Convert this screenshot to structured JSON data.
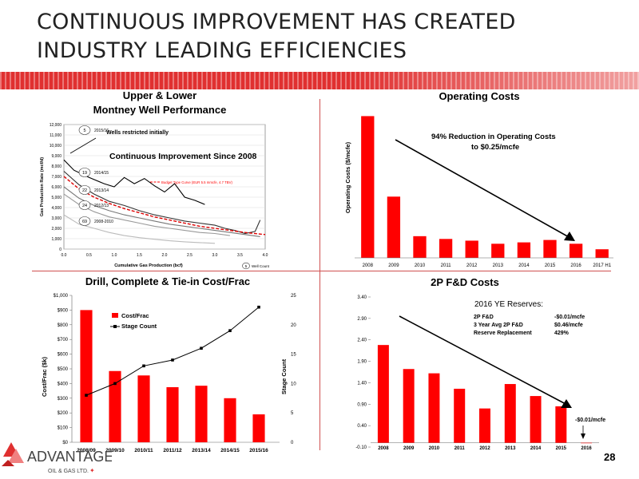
{
  "slide": {
    "title": "CONTINUOUS IMPROVEMENT HAS CREATED INDUSTRY LEADING EFFICIENCIES",
    "page_number": "28",
    "accent_color": "#e03030",
    "bar_color": "#ff0000",
    "logo_main": "ADVANTAGE",
    "logo_sub": "OIL & GAS LTD."
  },
  "chart_data": [
    {
      "type": "line",
      "title": "Upper & Lower Montney Well Performance",
      "title_lines": [
        "Upper & Lower",
        "Montney Well Performance"
      ],
      "xlabel": "Cumulative Gas Production (bcf)",
      "ylabel": "Gas Production Rate (mcf/d)",
      "xlim": [
        0,
        4
      ],
      "ylim": [
        0,
        12000
      ],
      "x_ticks": [
        "0.0",
        "0.5",
        "1.0",
        "1.5",
        "2.0",
        "2.5",
        "3.0",
        "3.5",
        "4.0"
      ],
      "y_ticks": [
        "0",
        "1,000",
        "2,000",
        "3,000",
        "4,000",
        "5,000",
        "6,000",
        "7,000",
        "8,000",
        "9,000",
        "10,000",
        "11,000",
        "12,000"
      ],
      "annotations": {
        "restricted": "Wells restricted initially",
        "improvement": "Continuous Improvement Since 2008",
        "type_curve": "Budget Type Curve (EUR 5.5 mmcfe, 4.7 TBV)",
        "well_count": "Well Count",
        "well_count_badge": "5"
      },
      "series": [
        {
          "name": "2015/16",
          "badge": "5",
          "color": "#000000",
          "points": [
            [
              0.0,
              8600
            ],
            [
              0.2,
              7600
            ],
            [
              0.5,
              6900
            ],
            [
              0.8,
              6300
            ],
            [
              1.0,
              6000
            ],
            [
              1.2,
              6900
            ],
            [
              1.4,
              6300
            ],
            [
              1.6,
              6800
            ],
            [
              1.8,
              6100
            ],
            [
              2.0,
              5500
            ],
            [
              2.2,
              6300
            ],
            [
              2.4,
              5000
            ],
            [
              2.6,
              4700
            ],
            [
              2.8,
              4300
            ]
          ]
        },
        {
          "name": "2014/15",
          "badge": "19",
          "color": "#333333",
          "points": [
            [
              0.0,
              7500
            ],
            [
              0.3,
              6200
            ],
            [
              0.6,
              5300
            ],
            [
              0.9,
              4600
            ],
            [
              1.2,
              4200
            ],
            [
              1.5,
              3700
            ],
            [
              1.8,
              3300
            ],
            [
              2.1,
              3000
            ],
            [
              2.4,
              2700
            ],
            [
              2.7,
              2500
            ],
            [
              3.0,
              2300
            ],
            [
              3.2,
              2000
            ],
            [
              3.4,
              1800
            ],
            [
              3.6,
              1500
            ],
            [
              3.8,
              1700
            ],
            [
              3.9,
              2800
            ]
          ]
        },
        {
          "name": "2013/14",
          "badge": "22",
          "color": "#777777",
          "points": [
            [
              0.0,
              6000
            ],
            [
              0.3,
              4900
            ],
            [
              0.6,
              4200
            ],
            [
              0.9,
              3700
            ],
            [
              1.2,
              3300
            ],
            [
              1.5,
              3000
            ],
            [
              1.8,
              2700
            ],
            [
              2.1,
              2400
            ],
            [
              2.4,
              2200
            ],
            [
              2.7,
              2000
            ],
            [
              3.0,
              1800
            ],
            [
              3.3,
              1600
            ],
            [
              3.6,
              1400
            ],
            [
              3.9,
              1200
            ]
          ]
        },
        {
          "name": "2012/13",
          "badge": "24",
          "color": "#999999",
          "points": [
            [
              0.0,
              5300
            ],
            [
              0.3,
              4300
            ],
            [
              0.6,
              3600
            ],
            [
              0.9,
              3100
            ],
            [
              1.2,
              2800
            ],
            [
              1.5,
              2500
            ],
            [
              1.8,
              2200
            ],
            [
              2.1,
              2000
            ],
            [
              2.4,
              1800
            ],
            [
              2.7,
              1600
            ],
            [
              3.0,
              1500
            ],
            [
              3.3,
              1300
            ]
          ]
        },
        {
          "name": "2008-2010",
          "badge": "69",
          "color": "#bbbbbb",
          "points": [
            [
              0.0,
              3300
            ],
            [
              0.3,
              2400
            ],
            [
              0.6,
              2000
            ],
            [
              0.9,
              1600
            ],
            [
              1.2,
              1300
            ],
            [
              1.5,
              1100
            ],
            [
              1.8,
              950
            ],
            [
              2.1,
              800
            ],
            [
              2.4,
              700
            ],
            [
              2.7,
              620
            ],
            [
              3.0,
              550
            ]
          ]
        },
        {
          "name": "Budget Type Curve",
          "color": "#dd0000",
          "dashed": true,
          "points": [
            [
              0.0,
              7000
            ],
            [
              0.3,
              5800
            ],
            [
              0.6,
              5000
            ],
            [
              0.9,
              4400
            ],
            [
              1.2,
              3900
            ],
            [
              1.5,
              3500
            ],
            [
              1.8,
              3100
            ],
            [
              2.1,
              2800
            ],
            [
              2.4,
              2500
            ],
            [
              2.7,
              2200
            ],
            [
              3.0,
              2000
            ],
            [
              3.3,
              1800
            ],
            [
              3.6,
              1600
            ],
            [
              3.9,
              1450
            ],
            [
              4.0,
              1400
            ]
          ]
        }
      ]
    },
    {
      "type": "bar",
      "title": "Operating Costs",
      "ylabel": "Operating Costs ($/mcfe)",
      "annotation": [
        "94% Reduction in Operating Costs",
        "to $0.25/mcfe"
      ],
      "categories": [
        "2008",
        "2009",
        "2010",
        "2011",
        "2012",
        "2013",
        "2014",
        "2015",
        "2016",
        "2017 H1"
      ],
      "values": [
        4.12,
        1.78,
        0.63,
        0.55,
        0.5,
        0.41,
        0.45,
        0.52,
        0.41,
        0.25
      ],
      "ylim": [
        0,
        4.2
      ]
    },
    {
      "type": "bar",
      "title": "Drill, Complete & Tie-in Cost/Frac",
      "ylabel": "Cost/Frac ($k)",
      "y2label": "Stage Count",
      "categories": [
        "2008/09",
        "2009/10",
        "2010/11",
        "2011/12",
        "2013/14",
        "2014/15",
        "2015/16"
      ],
      "ylim": [
        0,
        1000
      ],
      "y2lim": [
        0,
        25
      ],
      "y_ticks": [
        "$0",
        "$100",
        "$200",
        "$300",
        "$400",
        "$500",
        "$600",
        "$700",
        "$800",
        "$900",
        "$1,000"
      ],
      "y2_ticks": [
        "0",
        "5",
        "10",
        "15",
        "20",
        "25"
      ],
      "series": [
        {
          "name": "Cost/Frac",
          "kind": "bar",
          "values": [
            900,
            485,
            455,
            375,
            385,
            300,
            190
          ]
        },
        {
          "name": "Stage Count",
          "kind": "line",
          "values": [
            8,
            10,
            13,
            14,
            16,
            19,
            23
          ]
        }
      ]
    },
    {
      "type": "bar",
      "title": "2P F&D Costs",
      "categories": [
        "2008",
        "2009",
        "2010",
        "2011",
        "2012",
        "2013",
        "2014",
        "2015",
        "2016"
      ],
      "values": [
        2.28,
        1.72,
        1.62,
        1.26,
        0.8,
        1.37,
        1.09,
        0.85,
        -0.01
      ],
      "ylim": [
        -0.1,
        3.4
      ],
      "y_ticks": [
        "-0.10",
        "0.40",
        "0.90",
        "1.40",
        "1.90",
        "2.40",
        "2.90",
        "3.40"
      ],
      "reserves": {
        "heading": "2016 YE Reserves:",
        "rows": [
          {
            "label": "2P F&D",
            "value": "-$0.01/mcfe"
          },
          {
            "label": "3 Year Avg 2P F&D",
            "value": "$0.46/mcfe"
          },
          {
            "label": "Reserve Replacement",
            "value": "429%"
          }
        ]
      },
      "callout": "-$0.01/mcfe"
    }
  ]
}
